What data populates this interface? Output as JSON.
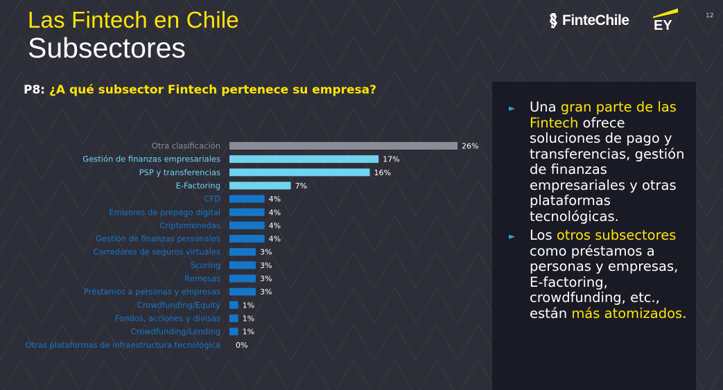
{
  "header": {
    "title": "Las Fintech en Chile",
    "subtitle": "Subsectores",
    "brand": "FinteChile",
    "brand2": "EY",
    "page_number": "12"
  },
  "question": {
    "prefix": "P8:",
    "text": "¿A qué subsector Fintech pertenece su empresa?"
  },
  "colors": {
    "gray": "#8c8c96",
    "light_blue": "#71d3f0",
    "blue": "#1576c8",
    "yellow": "#ffe600",
    "label_gray": "#8e8e99"
  },
  "chart_data": {
    "type": "bar",
    "orientation": "horizontal",
    "categories": [
      "Otra clasificación",
      "Gestión de finanzas empresariales",
      "PSP y transferencias",
      "E-Factoring",
      "CFD",
      "Emisores de prepago digital",
      "Criptomonedas",
      "Gestión de finanzas personales",
      "Corredores de seguros virtuales",
      "Scoring",
      "Remesas",
      "Préstamos a personas y empresas",
      "Crowdfunding/Equity",
      "Fondos, acciones y divisas",
      "Crowdfunding/Lending",
      "Otras plataformas de infraestructura tecnológica"
    ],
    "values": [
      26,
      17,
      16,
      7,
      4,
      4,
      4,
      4,
      3,
      3,
      3,
      3,
      1,
      1,
      1,
      0
    ],
    "value_labels": [
      "26%",
      "17%",
      "16%",
      "7%",
      "4%",
      "4%",
      "4%",
      "4%",
      "3%",
      "3%",
      "3%",
      "3%",
      "1%",
      "1%",
      "1%",
      "0%"
    ],
    "bar_colors": [
      "#8c8c96",
      "#71d3f0",
      "#71d3f0",
      "#71d3f0",
      "#1576c8",
      "#1576c8",
      "#1576c8",
      "#1576c8",
      "#1576c8",
      "#1576c8",
      "#1576c8",
      "#1576c8",
      "#1576c8",
      "#1576c8",
      "#1576c8",
      "#1576c8"
    ],
    "label_colors": [
      "#8e8e99",
      "#71d3f0",
      "#71d3f0",
      "#71d3f0",
      "#1576c8",
      "#1576c8",
      "#1576c8",
      "#1576c8",
      "#1576c8",
      "#1576c8",
      "#1576c8",
      "#1576c8",
      "#1576c8",
      "#1576c8",
      "#1576c8",
      "#1576c8"
    ],
    "xlim": [
      0,
      26
    ],
    "grid": false,
    "legend": "none"
  },
  "panel": {
    "bullet1": {
      "t1": "Una ",
      "h1": "gran parte de las Fintech",
      "t2": " ofrece soluciones de pago y transferencias, gestión de finanzas empresariales y otras plataformas tecnológicas."
    },
    "bullet2": {
      "t1": "Los ",
      "h1": "otros subsectores",
      "t2": " como préstamos a personas y empresas, E-factoring, crowdfunding, etc., están ",
      "h2": "más atomizados",
      "t3": "."
    }
  }
}
